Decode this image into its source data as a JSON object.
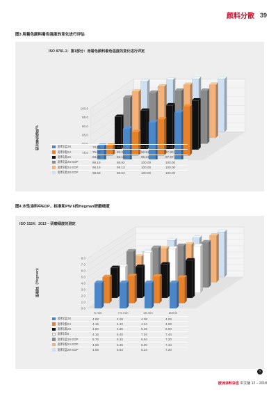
{
  "header": {
    "section_title": "颜料分散",
    "page_number": "39"
  },
  "figure3": {
    "caption": "图3 用着色颜料着色强度的变化进行评估",
    "panel_title": "ISO 8781-1：第1部分：用着色颜料着色强度的变化进行评定",
    "ylabel": "相对着色强度/%",
    "table": [
      {
        "name": "颜料蓝28",
        "color": "#4a86c8",
        "values": [
          "78.85",
          "88.52",
          "92.19",
          "97.80"
        ]
      },
      {
        "name": "颜料橙24",
        "color": "#e8822a",
        "values": [
          "75.63",
          "83.32",
          "90.51",
          "97.80"
        ]
      },
      {
        "name": "颜料黑28",
        "color": "#111111",
        "values": [
          "88.65",
          "92.14",
          "95.21",
          "97.97"
        ]
      },
      {
        "name": "颜料蓝28 EDP",
        "color": "#8a8a8a",
        "values": [
          "96.19",
          "98.92",
          "100.00",
          "100.00"
        ]
      },
      {
        "name": "颜料橙24 EDP",
        "color": "#f4b27a",
        "values": [
          "96.19",
          "99.13",
          "100.00",
          "100.00"
        ]
      },
      {
        "name": "颜料黑28 EDP",
        "color": "#cfe0f2",
        "values": [
          "98.59",
          "99.53",
          "100.00",
          "100.00"
        ]
      }
    ]
  },
  "figure4": {
    "caption": "图4 水性涂料中EDP，标准和PW 6的Hegman研磨细度",
    "panel_title": "ISO 1524：2013 – 研磨细度的测定",
    "ylabel": "研磨度（Hegman）",
    "table": [
      {
        "name": "颜料蓝28",
        "color": "#4a86c8",
        "values": [
          "4.08",
          "4.08",
          "4.08",
          "4.08"
        ]
      },
      {
        "name": "颜料橙24",
        "color": "#e8822a",
        "values": [
          "4.16",
          "4.32",
          "4.24",
          "4.08"
        ]
      },
      {
        "name": "颜料黑28",
        "color": "#111111",
        "values": [
          "4.80",
          "4.96",
          "5.36",
          "6.00"
        ]
      },
      {
        "name": "颜料白6",
        "color": "#ffffff",
        "values": [
          "4.16",
          "6.40",
          "7.04",
          "7.44"
        ]
      },
      {
        "name": "颜料蓝28 EDP",
        "color": "#8a8a8a",
        "values": [
          "5.76",
          "6.32",
          "6.64",
          "7.20"
        ]
      },
      {
        "name": "颜料橙24 EDP",
        "color": "#f4b27a",
        "values": [
          "4.08",
          "5.36",
          "6.00",
          "7.44"
        ]
      },
      {
        "name": "颜料蓝28 EDP",
        "color": "#cfe0f2",
        "values": [
          "4.08",
          "5.84",
          "6.24",
          "7.20"
        ]
      }
    ]
  },
  "chart_data": [
    {
      "type": "bar",
      "title": "ISO 8781-1：第1部分：用着色颜料着色强度的变化进行评定",
      "ylabel": "相对着色强度/%",
      "categories": [
        "7.5 min",
        "15 min",
        "30 min",
        "最终的色度"
      ],
      "yticks": [
        "70.0",
        "75.0",
        "80.0",
        "85.0",
        "90.0",
        "95.0",
        "100.0"
      ],
      "ylim": [
        70,
        100
      ],
      "series": [
        {
          "name": "颜料蓝28",
          "values": [
            78.85,
            88.52,
            92.19,
            97.8
          ]
        },
        {
          "name": "颜料橙24",
          "values": [
            75.63,
            83.32,
            90.51,
            97.8
          ]
        },
        {
          "name": "颜料黑28",
          "values": [
            88.65,
            92.14,
            95.21,
            97.97
          ]
        },
        {
          "name": "颜料蓝28 EDP",
          "values": [
            96.19,
            98.92,
            100.0,
            100.0
          ]
        },
        {
          "name": "颜料橙24 EDP",
          "values": [
            96.19,
            99.13,
            100.0,
            100.0
          ]
        },
        {
          "name": "颜料黑28 EDP",
          "values": [
            98.59,
            99.53,
            100.0,
            100.0
          ]
        }
      ]
    },
    {
      "type": "bar",
      "title": "ISO 1524：2013 – 研磨细度的测定",
      "ylabel": "研磨度（Hegman）",
      "categories": [
        "5 min",
        "7.5 min",
        "15 min",
        "30min"
      ],
      "yticks": [
        "0.0",
        "1.0",
        "2.0",
        "3.0",
        "4.0",
        "5.0",
        "6.0",
        "7.0",
        "8.0"
      ],
      "ylim": [
        0,
        8
      ],
      "series": [
        {
          "name": "颜料蓝28",
          "values": [
            4.08,
            4.08,
            4.08,
            4.08
          ]
        },
        {
          "name": "颜料橙24",
          "values": [
            4.16,
            4.32,
            4.24,
            4.08
          ]
        },
        {
          "name": "颜料黑28",
          "values": [
            4.8,
            4.96,
            5.36,
            6.0
          ]
        },
        {
          "name": "颜料白6",
          "values": [
            4.16,
            6.4,
            7.04,
            7.44
          ]
        },
        {
          "name": "颜料蓝28 EDP",
          "values": [
            5.76,
            6.32,
            6.64,
            7.2
          ]
        },
        {
          "name": "颜料橙24 EDP",
          "values": [
            4.08,
            5.36,
            6.0,
            7.44
          ]
        },
        {
          "name": "颜料蓝28 EDP",
          "values": [
            4.08,
            5.84,
            6.24,
            7.2
          ]
        }
      ]
    }
  ],
  "footer": {
    "brand": "欧洲涂料杂志",
    "edition": "中文版",
    "issue": "12 – 2018"
  }
}
